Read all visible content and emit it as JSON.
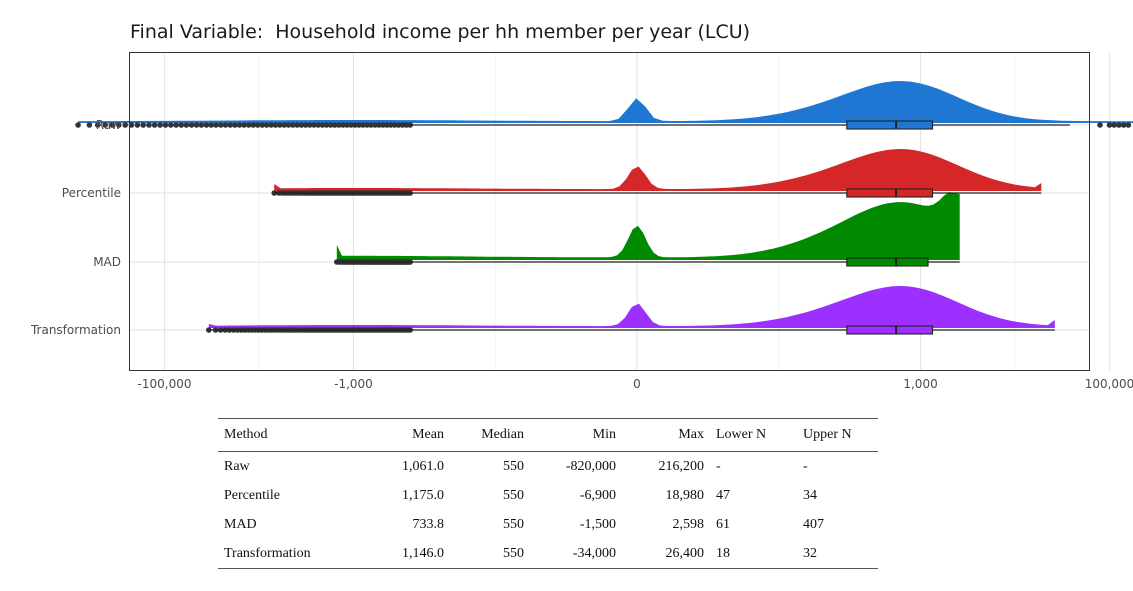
{
  "title": "Final Variable:  Household income per hh member per year (LCU)",
  "chart_data": {
    "type": "raincloud",
    "title": "Final Variable:  Household income per hh member per year (LCU)",
    "x_scale": "pseudo-log (signed)",
    "x_ticks": [
      -100000,
      -1000,
      0,
      1000,
      100000
    ],
    "x_tick_labels": [
      "-100,000",
      "-1,000",
      "0",
      "1,000",
      "100,000"
    ],
    "xlim": [
      -1000000,
      1000000
    ],
    "grid": true,
    "categories": [
      "Raw",
      "Percentile",
      "MAD",
      "Transformation"
    ],
    "series": [
      {
        "name": "Raw",
        "color": "#1f77d4",
        "min": -820000,
        "max": 216200,
        "q1": 165,
        "median": 550,
        "q3": 1340,
        "whisker_low": -300,
        "whisker_high": 38000
      },
      {
        "name": "Percentile",
        "color": "#d62728",
        "min": -6900,
        "max": 18980,
        "q1": 165,
        "median": 550,
        "q3": 1340,
        "whisker_low": -6900,
        "whisker_high": 18980
      },
      {
        "name": "MAD",
        "color": "#008a00",
        "min": -1500,
        "max": 2598,
        "q1": 165,
        "median": 550,
        "q3": 1200,
        "whisker_low": -1500,
        "whisker_high": 2598
      },
      {
        "name": "Transformation",
        "color": "#9b30ff",
        "min": -34000,
        "max": 26400,
        "q1": 165,
        "median": 550,
        "q3": 1340,
        "whisker_low": -34000,
        "whisker_high": 26400
      }
    ]
  },
  "table": {
    "headers": [
      "Method",
      "Mean",
      "Median",
      "Min",
      "Max",
      "Lower N",
      "Upper N"
    ],
    "rows": [
      [
        "Raw",
        "1,061.0",
        "550",
        "-820,000",
        "216,200",
        "-",
        "-"
      ],
      [
        "Percentile",
        "1,175.0",
        "550",
        "-6,900",
        "18,980",
        "47",
        "34"
      ],
      [
        "MAD",
        "733.8",
        "550",
        "-1,500",
        "2,598",
        "61",
        "407"
      ],
      [
        "Transformation",
        "1,146.0",
        "550",
        "-34,000",
        "26,400",
        "18",
        "32"
      ]
    ]
  }
}
